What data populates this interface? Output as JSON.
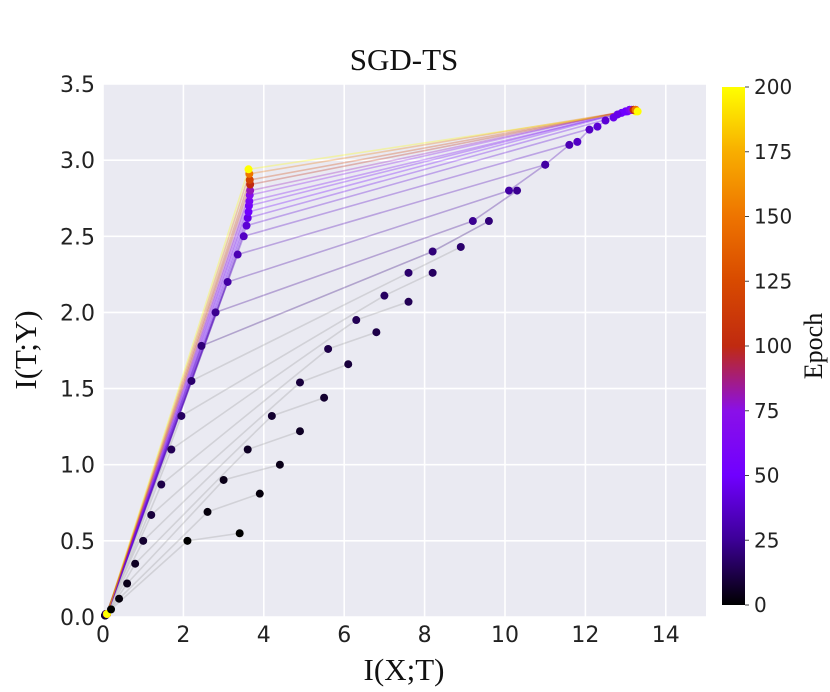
{
  "chart_data": {
    "type": "scatter",
    "title": "SGD-TS",
    "x_label": "I(X;T)",
    "y_label": "I(T;Y)",
    "xlim": [
      0,
      15
    ],
    "xticks": [
      0,
      2,
      4,
      6,
      8,
      10,
      12,
      14
    ],
    "ylim": [
      0,
      3.5
    ],
    "yticks": [
      {
        "value": 0,
        "label": "0.0"
      },
      0.5,
      {
        "value": 1,
        "label": "1.0"
      },
      1.5,
      {
        "value": 2,
        "label": "2.0"
      },
      2.5,
      {
        "value": 3,
        "label": "3.0"
      },
      3.5
    ],
    "grid": true,
    "background": "#eaeaf2",
    "epochs": [
      0,
      2,
      4,
      6,
      8,
      10,
      12,
      14,
      16,
      18,
      20,
      24,
      28,
      32,
      36,
      40,
      45,
      50,
      55,
      60,
      70,
      80,
      100,
      120,
      150,
      200
    ],
    "series": [
      {
        "x": [
          0.05,
          0.05,
          0.06,
          0.06,
          0.07,
          0.07,
          0.08,
          0.08,
          0.08,
          0.09,
          0.09,
          0.09,
          0.1,
          0.1,
          0.1,
          0.1,
          0.1,
          0.1,
          0.1,
          0.1,
          0.1,
          0.1,
          0.1,
          0.1,
          0.1,
          0.1
        ],
        "y": [
          0.01,
          0.01,
          0.01,
          0.01,
          0.02,
          0.02,
          0.02,
          0.02,
          0.02,
          0.02,
          0.02,
          0.02,
          0.02,
          0.02,
          0.02,
          0.02,
          0.02,
          0.02,
          0.02,
          0.02,
          0.02,
          0.02,
          0.02,
          0.02,
          0.02,
          0.02
        ]
      },
      {
        "x": [
          0.2,
          0.4,
          0.6,
          0.8,
          1.0,
          1.2,
          1.45,
          1.7,
          1.95,
          2.2,
          2.45,
          2.8,
          3.1,
          3.35,
          3.5,
          3.57,
          3.6,
          3.62,
          3.63,
          3.64,
          3.65,
          3.66,
          3.66,
          3.65,
          3.64,
          3.62
        ],
        "y": [
          0.05,
          0.12,
          0.22,
          0.35,
          0.5,
          0.67,
          0.87,
          1.1,
          1.32,
          1.55,
          1.78,
          2.0,
          2.2,
          2.38,
          2.5,
          2.57,
          2.62,
          2.66,
          2.7,
          2.73,
          2.77,
          2.8,
          2.84,
          2.87,
          2.91,
          2.94
        ]
      },
      {
        "x": [
          2.1,
          2.6,
          3.0,
          3.6,
          4.2,
          4.9,
          5.6,
          6.3,
          7.0,
          7.6,
          8.2,
          9.2,
          10.1,
          11.0,
          11.8,
          12.3,
          12.7,
          12.9,
          13.0,
          13.05,
          13.1,
          13.15,
          13.2,
          13.2,
          13.25,
          13.25
        ],
        "y": [
          0.5,
          0.69,
          0.9,
          1.1,
          1.32,
          1.54,
          1.76,
          1.95,
          2.11,
          2.26,
          2.4,
          2.6,
          2.8,
          2.97,
          3.12,
          3.22,
          3.28,
          3.31,
          3.32,
          3.32,
          3.33,
          3.33,
          3.33,
          3.33,
          3.33,
          3.32
        ]
      },
      {
        "x": [
          3.4,
          3.9,
          4.4,
          4.9,
          5.5,
          6.1,
          6.8,
          7.6,
          8.2,
          8.9,
          9.6,
          10.3,
          11.0,
          11.6,
          12.1,
          12.5,
          12.8,
          13.0,
          13.1,
          13.1,
          13.15,
          13.2,
          13.2,
          13.25,
          13.25,
          13.3
        ],
        "y": [
          0.55,
          0.81,
          1.0,
          1.22,
          1.44,
          1.66,
          1.87,
          2.07,
          2.26,
          2.43,
          2.6,
          2.8,
          2.97,
          3.1,
          3.2,
          3.26,
          3.3,
          3.32,
          3.33,
          3.33,
          3.33,
          3.33,
          3.33,
          3.33,
          3.33,
          3.32
        ]
      }
    ],
    "colorbar": {
      "label": "Epoch",
      "lim": [
        0,
        200
      ],
      "ticks": [
        0,
        25,
        50,
        75,
        100,
        125,
        150,
        175,
        200
      ],
      "colormap": [
        "#000000",
        "#3c0096",
        "#7000ff",
        "#8a10e8",
        "#c02a10",
        "#d84a00",
        "#ee7400",
        "#f8ae00",
        "#ffff00"
      ]
    }
  }
}
